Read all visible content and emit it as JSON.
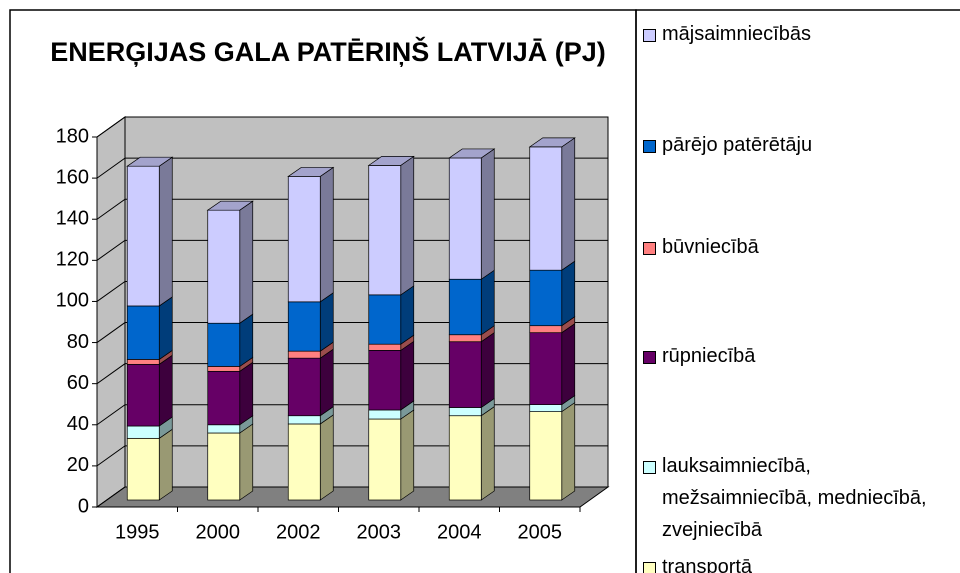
{
  "chart_data": {
    "type": "stacked_bar_3d",
    "title": "ENERĢIJAS GALA PATĒRIŅŠ LATVIJĀ (PJ)",
    "categories": [
      "1995",
      "2000",
      "2002",
      "2003",
      "2004",
      "2005"
    ],
    "series": [
      {
        "name": "transportā",
        "color": "#ffffc0",
        "values": [
          30,
          32.6,
          37,
          39.4,
          41,
          43
        ]
      },
      {
        "name": "lauksaimniecībā, mežsaimniecībā, medniecībā, zvejniecībā",
        "color": "#ccffff",
        "values": [
          6,
          4,
          4,
          4.4,
          4,
          3.4
        ]
      },
      {
        "name": "rūpniecībā",
        "color": "#660066",
        "values": [
          30,
          26,
          28,
          29,
          32,
          35
        ]
      },
      {
        "name": "būvniecībā",
        "color": "#ff8080",
        "values": [
          2.4,
          2.4,
          3.4,
          3,
          3.4,
          3.4
        ]
      },
      {
        "name": "pārējo patērētāju",
        "color": "#0066cc",
        "values": [
          26,
          21,
          24,
          24,
          27,
          27
        ]
      },
      {
        "name": "mājsaimniecībās",
        "color": "#ccccff",
        "values": [
          68,
          55,
          61,
          63,
          59,
          60
        ]
      }
    ],
    "ylim": [
      0,
      180
    ],
    "yticks": [
      0,
      20,
      40,
      60,
      80,
      100,
      120,
      140,
      160,
      180
    ],
    "grid": true
  }
}
